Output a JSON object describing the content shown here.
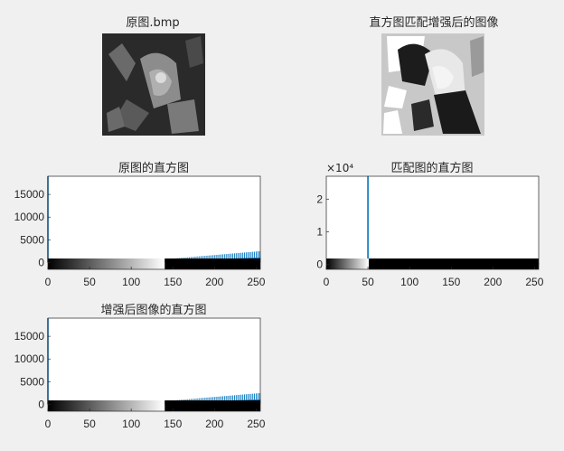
{
  "panel_titles": {
    "original_image": "原图.bmp",
    "matched_image": "直方图匹配增强后的图像",
    "hist_original": "原图的直方图",
    "hist_matched": "匹配图的直方图",
    "hist_enhanced": "增强后图像的直方图"
  },
  "colors": {
    "bar": "#0072bd",
    "axis": "#262626",
    "background": "#f0f0f0",
    "plot_bg": "#ffffff"
  },
  "chart_data": [
    {
      "type": "bar",
      "title": "原图的直方图",
      "xlabel": "",
      "ylabel": "",
      "xlim": [
        0,
        255
      ],
      "ylim": [
        -1500,
        19000
      ],
      "xticks": [
        0,
        50,
        100,
        150,
        200,
        250
      ],
      "yticks": [
        0,
        5000,
        10000,
        15000
      ],
      "ytick_labels": [
        "0",
        "5000",
        "10000",
        "15000"
      ],
      "colorbar": "grayscale 0-255 (white up to ~140, then black)",
      "spike": {
        "x": 0,
        "value": 19000
      },
      "ramp": {
        "start_x": 120,
        "end_x": 255,
        "start_value": 400,
        "end_value": 2500
      }
    },
    {
      "type": "bar",
      "title": "匹配图的直方图",
      "xlabel": "",
      "ylabel": "",
      "exponent_label": "×10⁴",
      "xlim": [
        0,
        255
      ],
      "ylim": [
        -0.15,
        2.7
      ],
      "xticks": [
        0,
        50,
        100,
        150,
        200,
        250
      ],
      "yticks": [
        0,
        1,
        2
      ],
      "ytick_labels": [
        "0",
        "1",
        "2"
      ],
      "colorbar": "grayscale 0-255 (white up to ~50, then black)",
      "spike": {
        "x": 50,
        "value": 2.7
      },
      "ramp": {
        "start_x": 230,
        "end_x": 255,
        "start_value": 0.05,
        "end_value": 0.1
      }
    },
    {
      "type": "bar",
      "title": "增强后图像的直方图",
      "xlabel": "",
      "ylabel": "",
      "xlim": [
        0,
        255
      ],
      "ylim": [
        -1500,
        19000
      ],
      "xticks": [
        0,
        50,
        100,
        150,
        200,
        250
      ],
      "yticks": [
        0,
        5000,
        10000,
        15000
      ],
      "ytick_labels": [
        "0",
        "5000",
        "10000",
        "15000"
      ],
      "colorbar": "grayscale 0-255 (white up to ~140, then black)",
      "spike": {
        "x": 0,
        "value": 19000
      },
      "ramp": {
        "start_x": 120,
        "end_x": 255,
        "start_value": 400,
        "end_value": 2500
      }
    }
  ]
}
